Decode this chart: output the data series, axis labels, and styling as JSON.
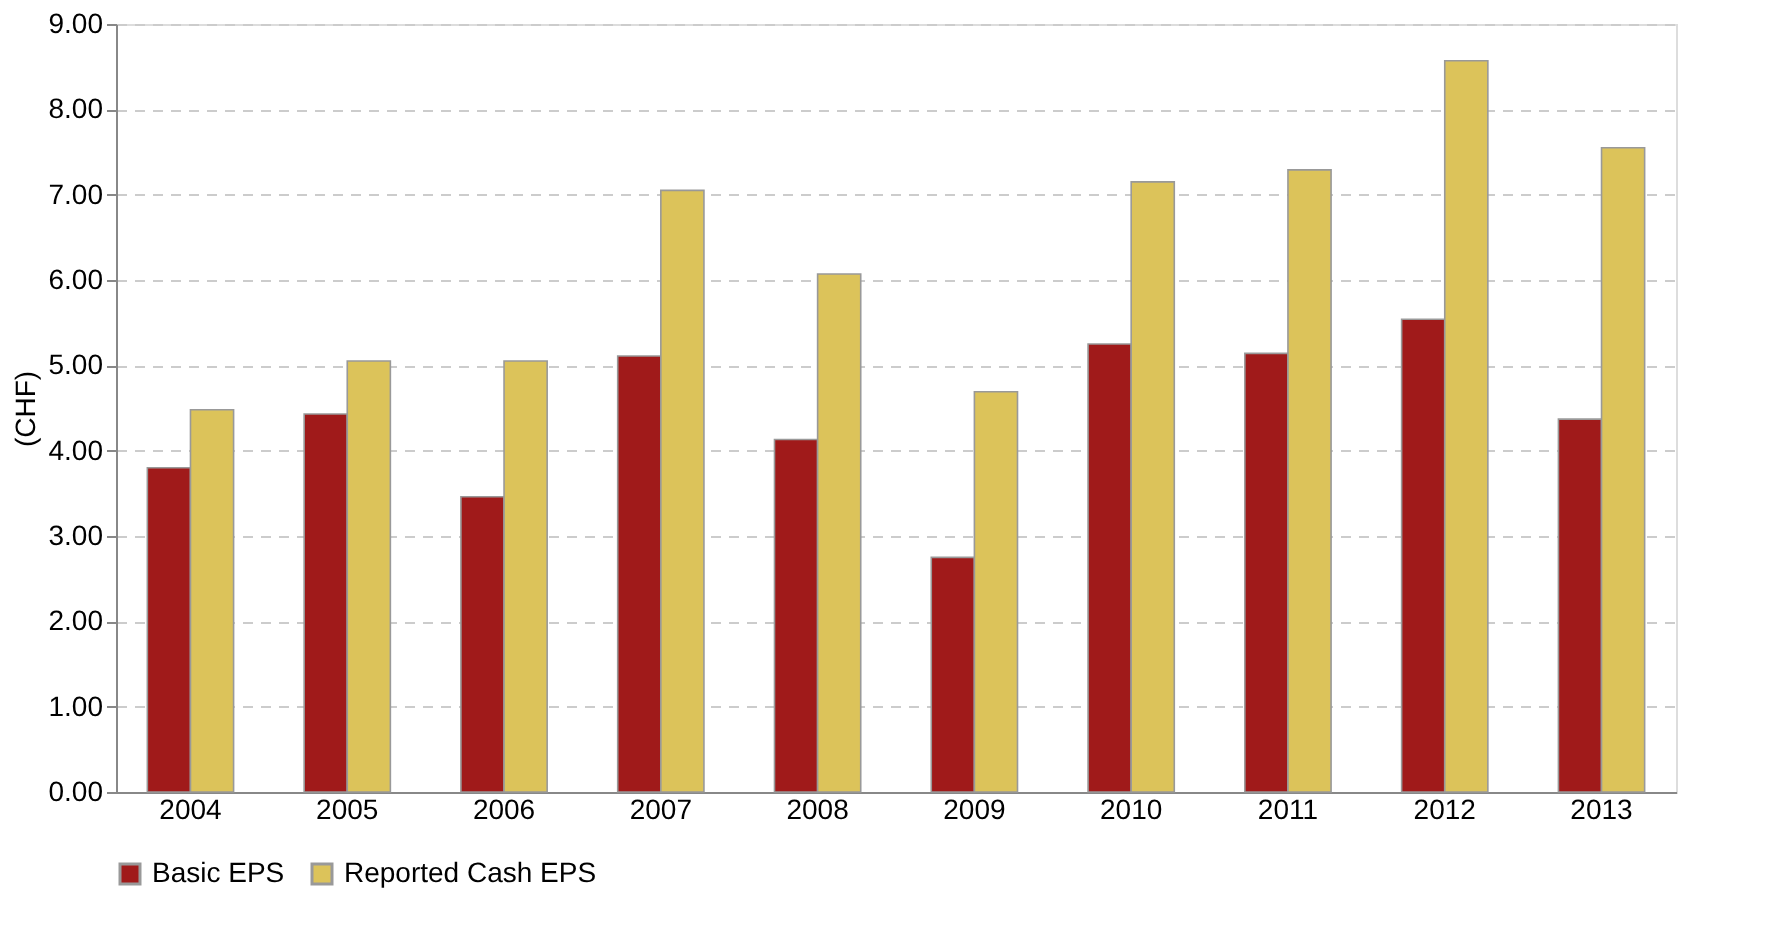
{
  "chart_data": {
    "type": "bar",
    "ylabel": "(CHF)",
    "categories": [
      "2004",
      "2005",
      "2006",
      "2007",
      "2008",
      "2009",
      "2010",
      "2011",
      "2012",
      "2013"
    ],
    "series": [
      {
        "name": "Basic EPS",
        "color": "#a01a1a",
        "values": [
          3.8,
          4.43,
          3.46,
          5.11,
          4.13,
          2.75,
          5.25,
          5.14,
          5.54,
          4.37
        ]
      },
      {
        "name": "Reported Cash EPS",
        "color": "#dcc35a",
        "values": [
          4.48,
          5.05,
          5.05,
          7.05,
          6.07,
          4.69,
          7.15,
          7.29,
          8.57,
          7.55
        ]
      }
    ],
    "ylim": [
      0,
      9
    ],
    "yticks": [
      {
        "value": 0,
        "label": "0.00"
      },
      {
        "value": 1,
        "label": "1.00"
      },
      {
        "value": 2,
        "label": "2.00"
      },
      {
        "value": 3,
        "label": "3.00"
      },
      {
        "value": 4,
        "label": "4.00"
      },
      {
        "value": 5,
        "label": "5.00"
      },
      {
        "value": 6,
        "label": "6.00"
      },
      {
        "value": 7,
        "label": "7.00"
      },
      {
        "value": 8,
        "label": "8.00"
      },
      {
        "value": 9,
        "label": "9.00"
      }
    ],
    "grid": "y",
    "legend": "bottom"
  }
}
